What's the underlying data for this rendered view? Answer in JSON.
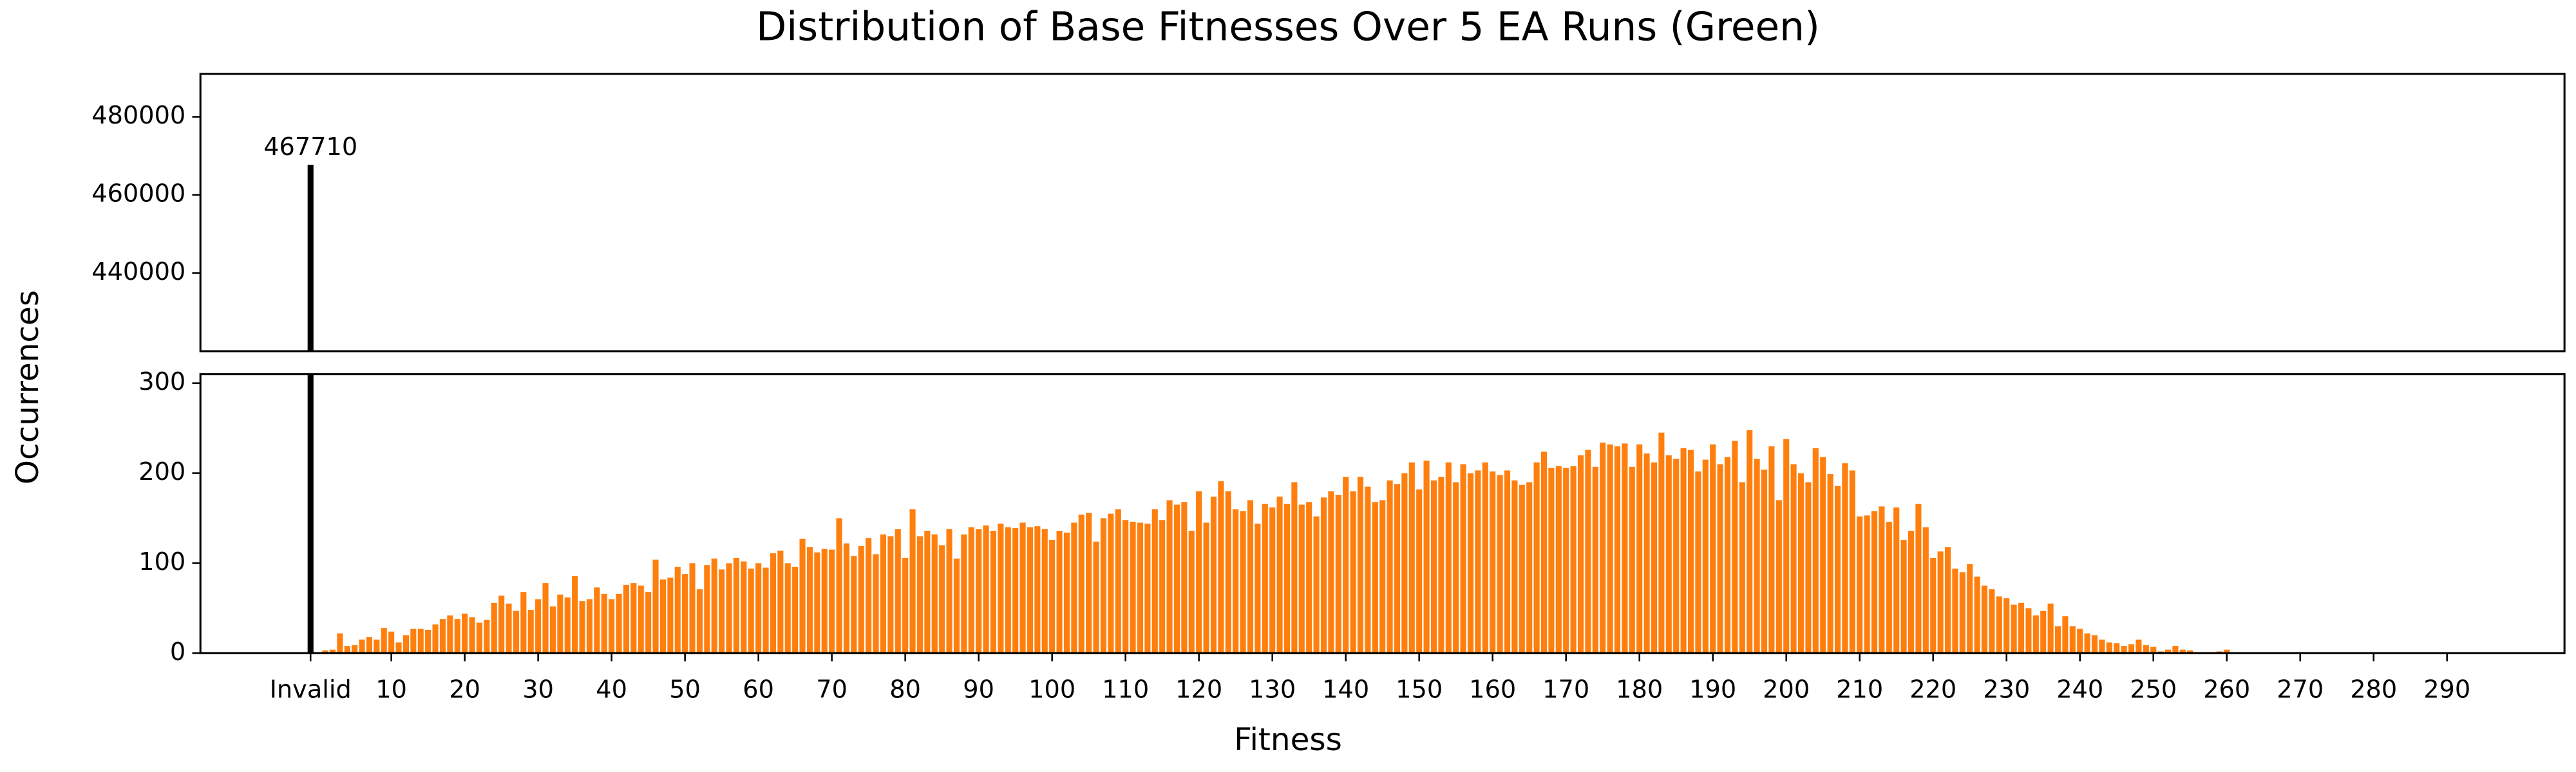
{
  "chart_data": {
    "type": "bar",
    "title": "Distribution of Base Fitnesses Over 5 EA Runs (Green)",
    "x_label": "Fitness",
    "y_label": "Occurrences",
    "xlim": [
      -16,
      306
    ],
    "xticks": [
      {
        "value": -1,
        "label": "Invalid"
      },
      10,
      20,
      30,
      40,
      50,
      60,
      70,
      80,
      90,
      100,
      110,
      120,
      130,
      140,
      150,
      160,
      170,
      180,
      190,
      200,
      210,
      220,
      230,
      240,
      250,
      260,
      270,
      280,
      290
    ],
    "panels": [
      {
        "ylim": [
          420000,
          491000
        ],
        "yticks": [
          440000,
          460000,
          480000
        ]
      },
      {
        "ylim": [
          0,
          310
        ],
        "yticks": [
          0,
          100,
          200,
          300
        ]
      }
    ],
    "series": [
      {
        "color": "#000000",
        "show_value_labels": true,
        "x": [
          -1
        ],
        "values": [
          467710
        ]
      },
      {
        "color": "#ff7f0e",
        "show_value_labels": false,
        "x": [
          0,
          1,
          2,
          3,
          4,
          5,
          6,
          7,
          8,
          9,
          10,
          11,
          12,
          13,
          14,
          15,
          16,
          17,
          18,
          19,
          20,
          21,
          22,
          23,
          24,
          25,
          26,
          27,
          28,
          29,
          30,
          31,
          32,
          33,
          34,
          35,
          36,
          37,
          38,
          39,
          40,
          41,
          42,
          43,
          44,
          45,
          46,
          47,
          48,
          49,
          50,
          51,
          52,
          53,
          54,
          55,
          56,
          57,
          58,
          59,
          60,
          61,
          62,
          63,
          64,
          65,
          66,
          67,
          68,
          69,
          70,
          71,
          72,
          73,
          74,
          75,
          76,
          77,
          78,
          79,
          80,
          81,
          82,
          83,
          84,
          85,
          86,
          87,
          88,
          89,
          90,
          91,
          92,
          93,
          94,
          95,
          96,
          97,
          98,
          99,
          100,
          101,
          102,
          103,
          104,
          105,
          106,
          107,
          108,
          109,
          110,
          111,
          112,
          113,
          114,
          115,
          116,
          117,
          118,
          119,
          120,
          121,
          122,
          123,
          124,
          125,
          126,
          127,
          128,
          129,
          130,
          131,
          132,
          133,
          134,
          135,
          136,
          137,
          138,
          139,
          140,
          141,
          142,
          143,
          144,
          145,
          146,
          147,
          148,
          149,
          150,
          151,
          152,
          153,
          154,
          155,
          156,
          157,
          158,
          159,
          160,
          161,
          162,
          163,
          164,
          165,
          166,
          167,
          168,
          169,
          170,
          171,
          172,
          173,
          174,
          175,
          176,
          177,
          178,
          179,
          180,
          181,
          182,
          183,
          184,
          185,
          186,
          187,
          188,
          189,
          190,
          191,
          192,
          193,
          194,
          195,
          196,
          197,
          198,
          199,
          200,
          201,
          202,
          203,
          204,
          205,
          206,
          207,
          208,
          209,
          210,
          211,
          212,
          213,
          214,
          215,
          216,
          217,
          218,
          219,
          220,
          221,
          222,
          223,
          224,
          225,
          226,
          227,
          228,
          229,
          230,
          231,
          232,
          233,
          234,
          235,
          236,
          237,
          238,
          239,
          240,
          241,
          242,
          243,
          244,
          245,
          246,
          247,
          248,
          249,
          250,
          251,
          252,
          253,
          254,
          255,
          256,
          257,
          258,
          259,
          260
        ],
        "values": [
          1,
          3,
          4,
          22,
          8,
          9,
          15,
          18,
          15,
          28,
          24,
          12,
          20,
          27,
          27,
          26,
          32,
          38,
          42,
          38,
          44,
          40,
          34,
          37,
          56,
          64,
          55,
          47,
          68,
          48,
          60,
          78,
          52,
          65,
          62,
          86,
          58,
          60,
          73,
          66,
          60,
          66,
          76,
          78,
          75,
          68,
          104,
          82,
          84,
          96,
          88,
          100,
          71,
          98,
          105,
          93,
          100,
          106,
          102,
          94,
          100,
          95,
          111,
          114,
          100,
          96,
          127,
          118,
          112,
          116,
          115,
          150,
          122,
          108,
          119,
          128,
          110,
          132,
          130,
          138,
          106,
          160,
          130,
          136,
          132,
          120,
          138,
          105,
          132,
          140,
          138,
          142,
          136,
          144,
          140,
          139,
          145,
          140,
          141,
          138,
          126,
          136,
          134,
          145,
          154,
          156,
          124,
          150,
          155,
          160,
          148,
          146,
          145,
          144,
          160,
          148,
          170,
          165,
          168,
          136,
          180,
          145,
          174,
          191,
          180,
          160,
          158,
          170,
          144,
          166,
          162,
          174,
          166,
          190,
          165,
          168,
          152,
          173,
          180,
          176,
          196,
          180,
          196,
          185,
          168,
          170,
          192,
          188,
          200,
          212,
          182,
          214,
          192,
          196,
          212,
          190,
          210,
          200,
          203,
          212,
          202,
          198,
          203,
          192,
          187,
          190,
          212,
          224,
          206,
          208,
          206,
          208,
          220,
          226,
          207,
          234,
          232,
          230,
          233,
          207,
          232,
          222,
          212,
          245,
          220,
          216,
          228,
          226,
          202,
          215,
          232,
          210,
          218,
          236,
          190,
          248,
          216,
          204,
          230,
          170,
          238,
          210,
          200,
          190,
          228,
          218,
          199,
          186,
          211,
          203,
          152,
          153,
          158,
          163,
          146,
          162,
          126,
          136,
          166,
          140,
          106,
          113,
          118,
          94,
          90,
          99,
          85,
          75,
          71,
          63,
          61,
          54,
          56,
          50,
          42,
          47,
          55,
          30,
          41,
          30,
          27,
          22,
          20,
          15,
          12,
          11,
          8,
          10,
          15,
          9,
          7,
          2,
          4,
          8,
          4,
          3,
          1,
          1,
          1,
          2,
          4
        ]
      }
    ]
  }
}
